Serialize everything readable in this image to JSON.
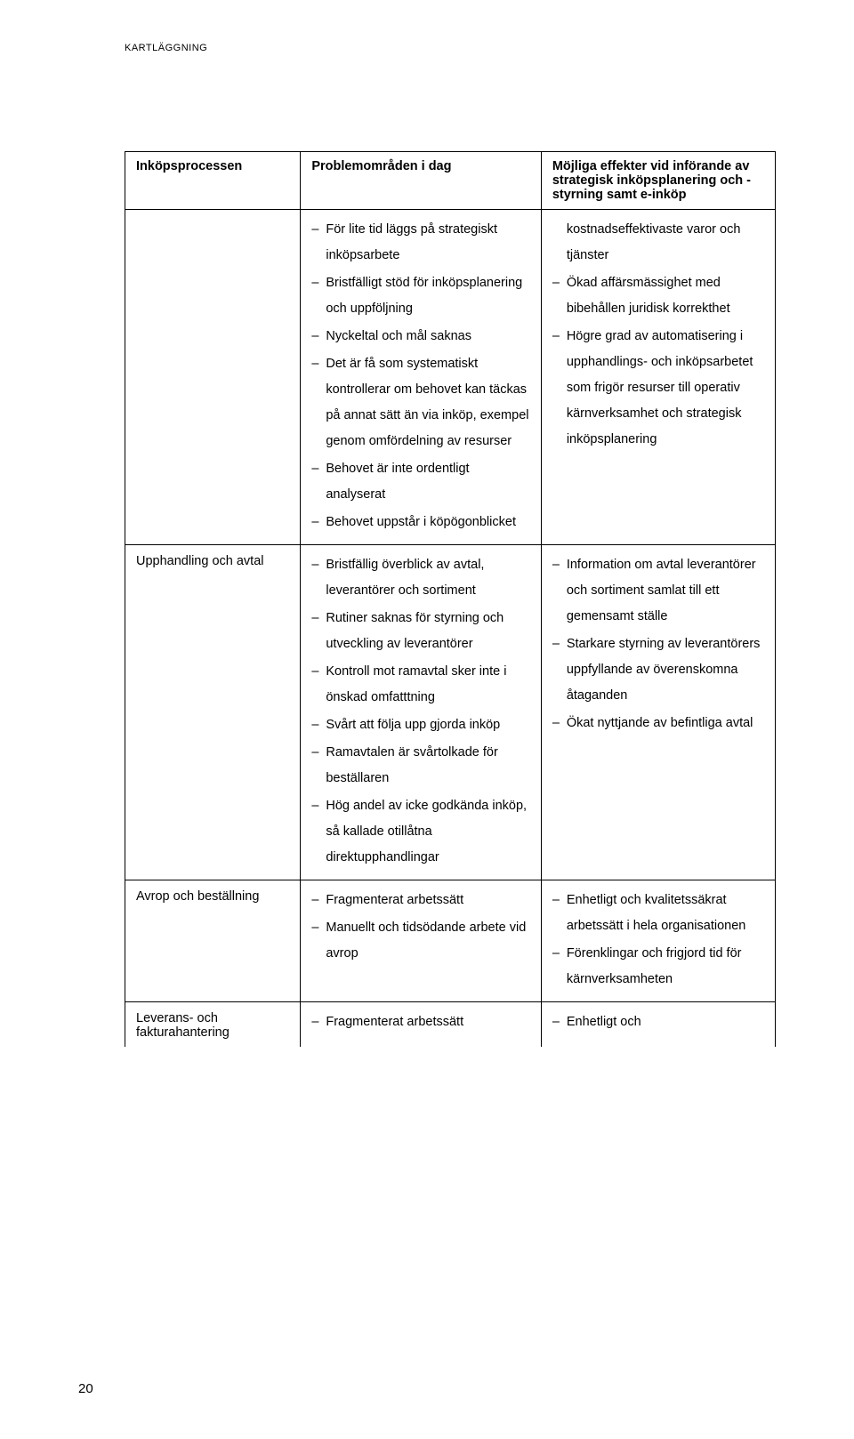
{
  "header": "KARTLÄGGNING",
  "page_number": "20",
  "table": {
    "headers": {
      "col1": "Inköpsprocessen",
      "col2": "Problemområden i dag",
      "col3": "Möjliga effekter vid införande av strategisk inköpsplanering och -styrning samt e-inköp"
    },
    "rows": [
      {
        "label": "",
        "col2_items": [
          "För lite tid läggs på strategiskt inköpsarbete",
          "Bristfälligt stöd för inköpsplanering och uppföljning",
          "Nyckeltal och mål saknas",
          "Det är få som systematiskt kontrollerar om behovet kan täckas på annat sätt än via inköp, exempel genom omfördelning av resurser",
          "Behovet är inte ordentligt analyserat",
          "Behovet uppstår i köpögonblicket"
        ],
        "col3_items": [
          "kostnadseffektivaste varor och tjänster",
          "Ökad affärsmässighet med bibehållen juridisk korrekthet",
          "Högre grad av automatisering i upphandlings- och inköpsarbetet som frigör resurser till operativ kärnverksamhet och strategisk inköpsplanering"
        ],
        "col3_first_plain": true
      },
      {
        "label": "Upphandling och avtal",
        "col2_items": [
          "Bristfällig överblick av avtal, leverantörer och sortiment",
          "Rutiner saknas för styrning och utveckling av leverantörer",
          "Kontroll mot ramavtal sker inte i önskad omfatttning",
          "Svårt att följa upp gjorda inköp",
          "Ramavtalen är svårtolkade för beställaren",
          "Hög andel av icke godkända inköp, så kallade otillåtna direktupphandlingar"
        ],
        "col3_items": [
          "Information om avtal leverantörer och sortiment samlat till ett gemensamt ställe",
          "Starkare styrning av leverantörers uppfyllande av överenskomna åtaganden",
          "Ökat nyttjande av befintliga avtal"
        ]
      },
      {
        "label": "Avrop och beställning",
        "col2_items": [
          "Fragmenterat arbetssätt",
          "Manuellt och tidsödande arbete vid avrop"
        ],
        "col3_items": [
          "Enhetligt och kvalitetssäkrat arbetssätt i hela organisationen",
          "Förenklingar och frigjord tid för kärnverksamheten"
        ]
      },
      {
        "label": "Leverans- och fakturahantering",
        "col2_items": [
          "Fragmenterat arbetssätt"
        ],
        "col3_items": [
          "Enhetligt och"
        ]
      }
    ]
  }
}
